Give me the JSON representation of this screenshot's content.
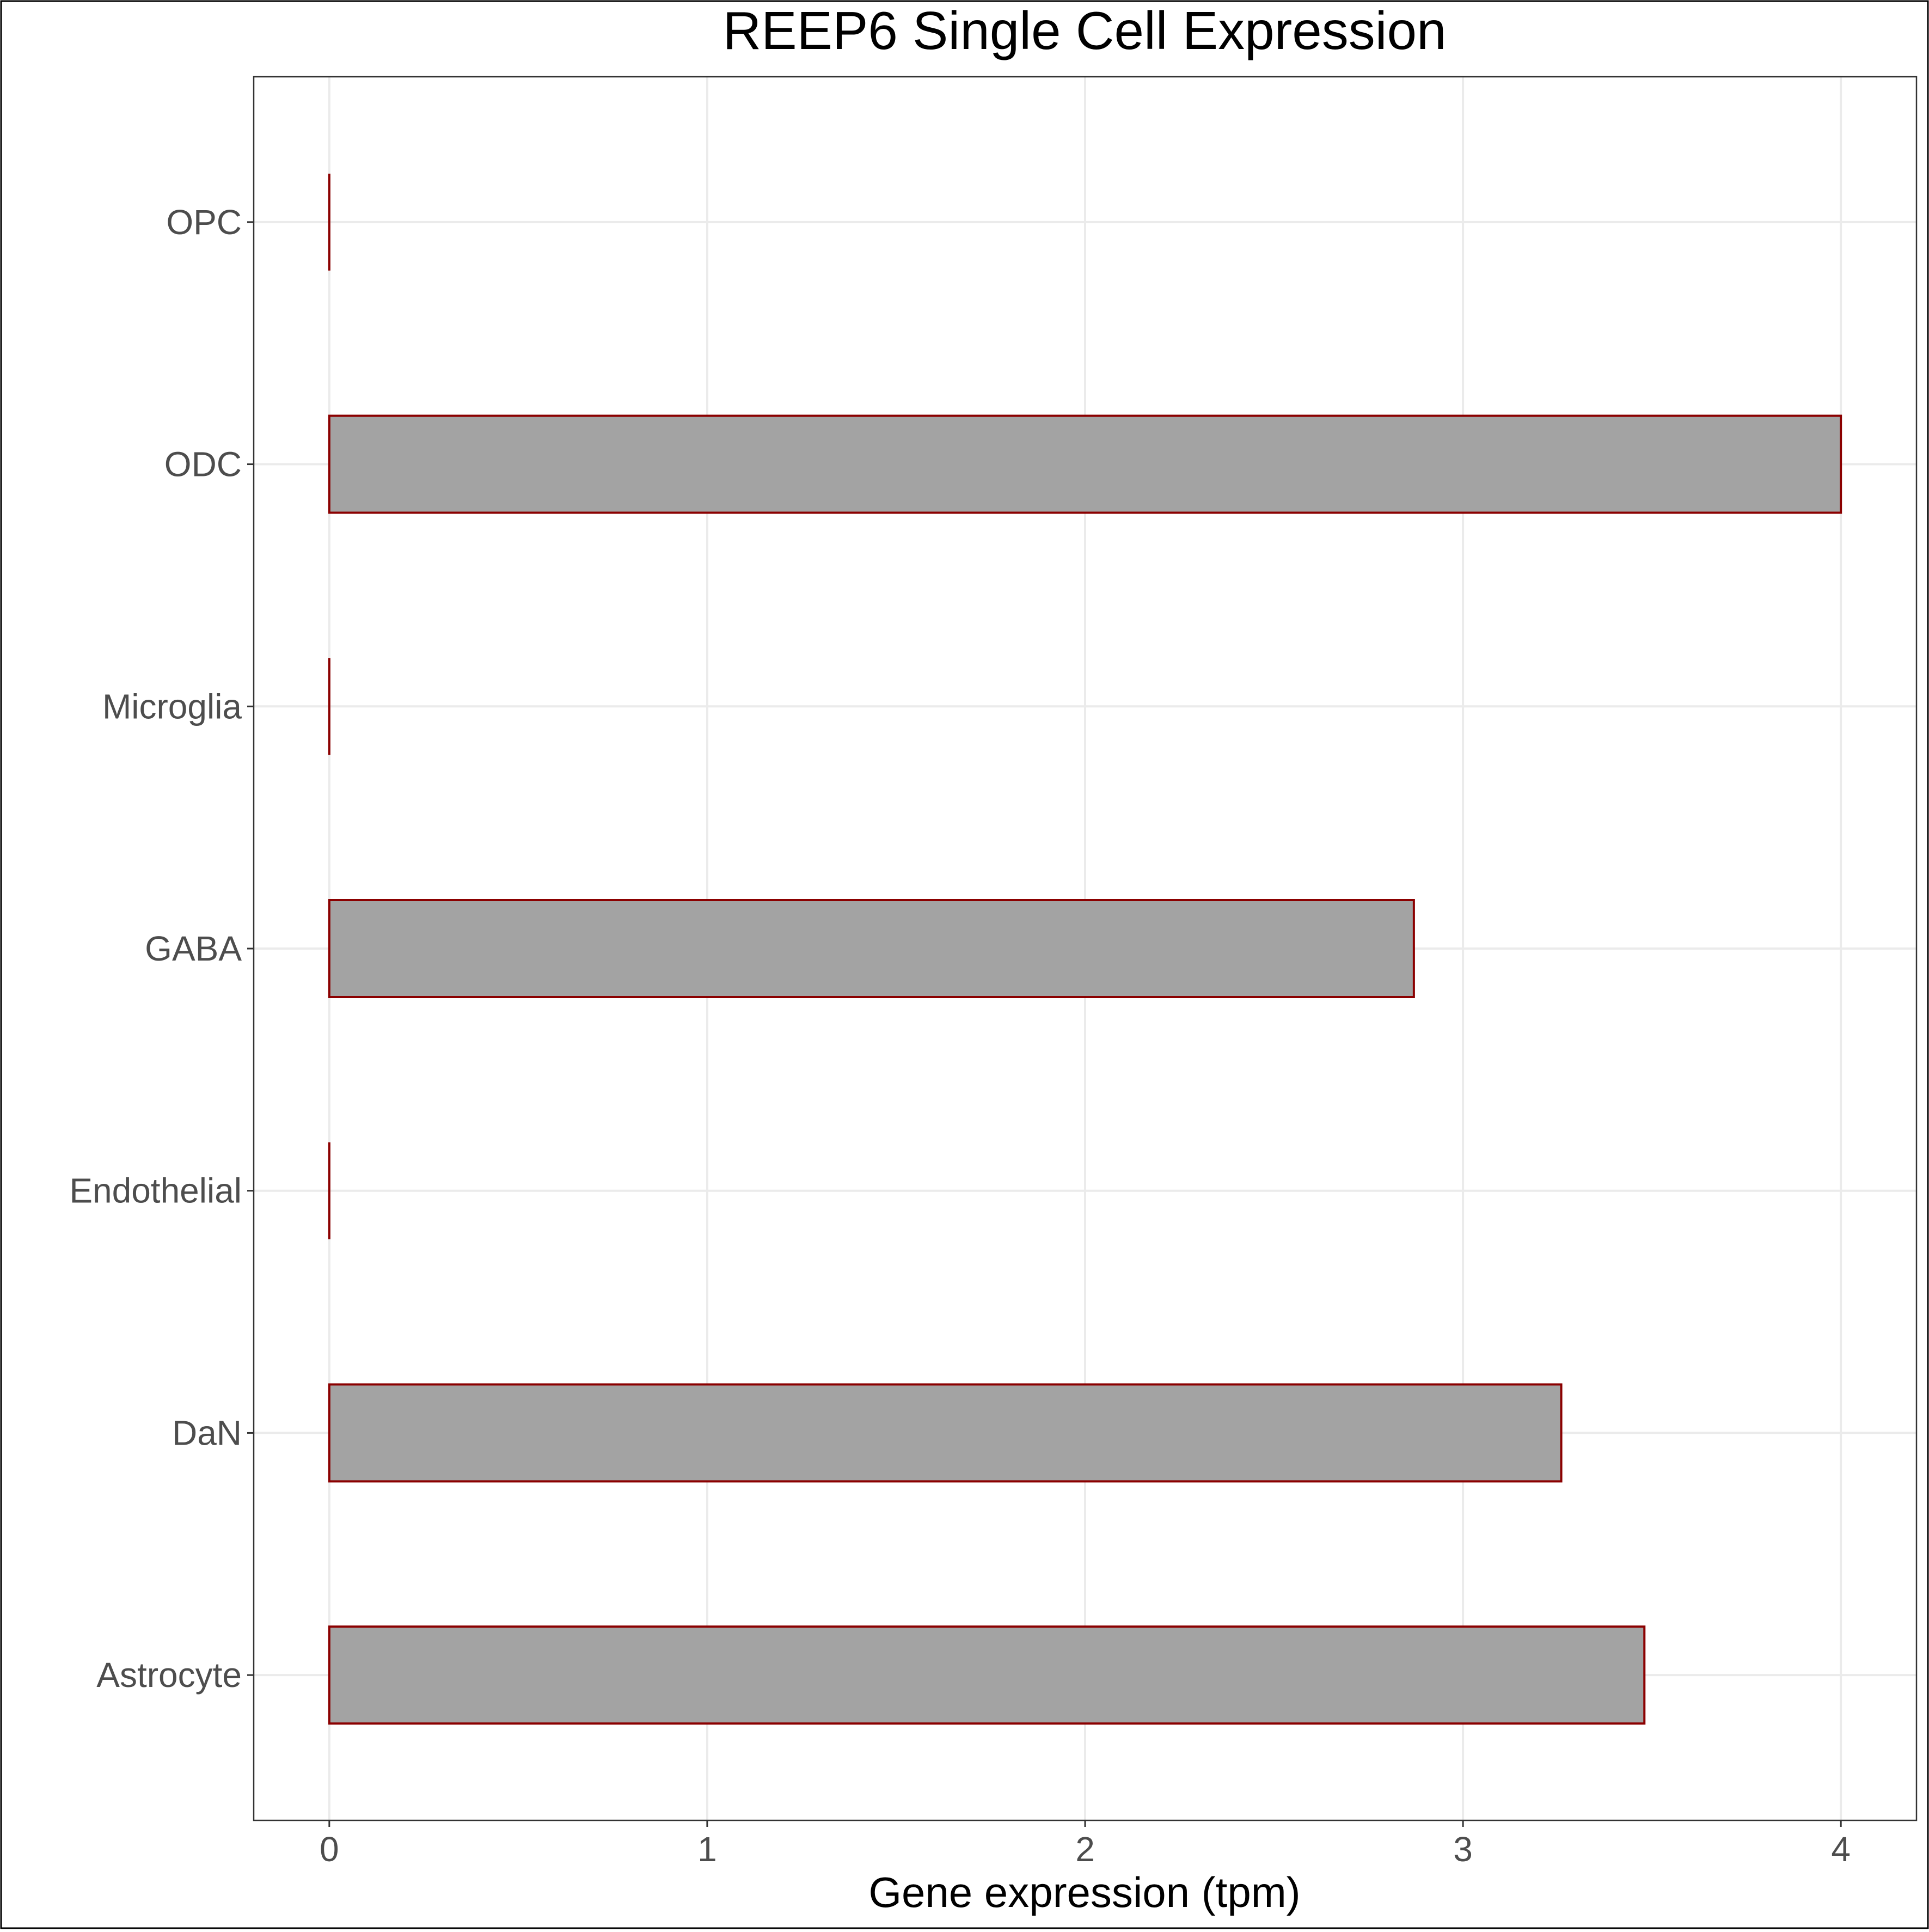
{
  "chart_data": {
    "type": "bar",
    "orientation": "horizontal",
    "title": "REEP6 Single Cell Expression",
    "xlabel": "Gene expression (tpm)",
    "ylabel": "",
    "categories": [
      "Astrocyte",
      "DaN",
      "Endothelial",
      "GABA",
      "Microglia",
      "ODC",
      "OPC"
    ],
    "values": [
      3.48,
      3.26,
      0,
      2.87,
      0,
      4.0,
      0
    ],
    "xlim": [
      -0.2,
      4.2
    ],
    "xticks": [
      0,
      1,
      2,
      3,
      4
    ],
    "grid": true,
    "legend": "none",
    "colors": {
      "bar_fill": "#a3a3a3",
      "bar_stroke": "#8b0000",
      "grid": "#ebebeb",
      "axis_text": "#4d4d4d",
      "title": "#000000",
      "panel_border": "#333333",
      "outer_border": "#000000"
    }
  }
}
